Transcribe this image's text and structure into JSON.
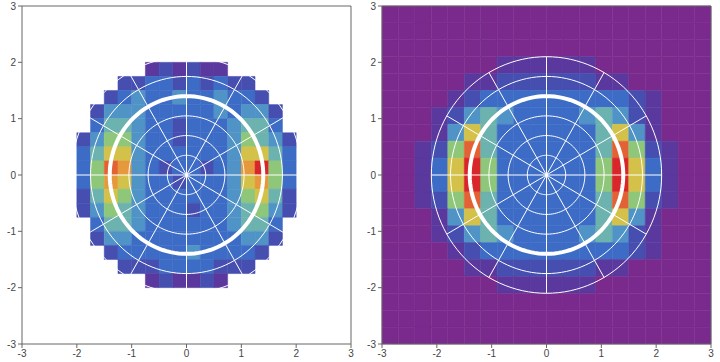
{
  "chart_data": [
    {
      "type": "heatmap",
      "xlim": [
        -3,
        3
      ],
      "ylim": [
        -3,
        3
      ],
      "xticks": [
        -3,
        -2,
        -1,
        0,
        1,
        2,
        3
      ],
      "yticks": [
        -3,
        -2,
        -1,
        0,
        1,
        2,
        3
      ],
      "zlim": [
        0,
        10
      ],
      "ring_radius": 1.4,
      "polar_grid": {
        "radii": [
          0.35,
          0.7,
          1.05,
          1.75,
          2.1
        ],
        "angles": [
          0,
          30,
          60,
          90,
          120,
          150,
          180,
          210,
          240,
          270,
          300,
          330
        ]
      },
      "x_edges": [
        -2,
        -1.75,
        -1.5,
        -1.25,
        -1,
        -0.75,
        -0.5,
        -0.25,
        0,
        0.25,
        0.5,
        0.75,
        1,
        1.25,
        1.5,
        1.75,
        2
      ],
      "y_edges": [
        2,
        1.75,
        1.5,
        1.25,
        1,
        0.75,
        0.5,
        0.25,
        0,
        -0.25,
        -0.5,
        -0.75,
        -1,
        -1.25,
        -1.5,
        -1.75,
        -2
      ],
      "cells": [
        [
          null,
          null,
          null,
          null,
          null,
          1,
          2,
          1,
          2,
          1,
          1,
          null,
          null,
          null,
          null,
          null
        ],
        [
          null,
          null,
          null,
          2,
          2,
          3,
          3,
          2,
          3,
          2,
          3,
          2,
          2,
          null,
          null,
          null
        ],
        [
          null,
          null,
          2,
          3,
          4,
          3,
          3,
          4,
          3,
          3,
          4,
          3,
          3,
          2,
          null,
          null
        ],
        [
          null,
          2,
          4,
          4,
          4,
          3,
          3,
          3,
          3,
          3,
          4,
          3,
          4,
          4,
          2,
          null
        ],
        [
          null,
          3,
          5,
          5,
          4,
          3,
          3,
          2,
          3,
          3,
          3,
          4,
          5,
          5,
          3,
          null
        ],
        [
          2,
          4,
          6,
          6,
          4,
          3,
          3,
          2,
          3,
          3,
          3,
          4,
          6,
          5,
          4,
          2
        ],
        [
          3,
          5,
          7,
          7,
          4,
          3,
          3,
          3,
          3,
          3,
          3,
          4,
          7,
          7,
          5,
          3
        ],
        [
          3,
          6,
          9,
          8,
          4,
          3,
          2,
          3,
          3,
          2,
          3,
          4,
          8,
          10,
          6,
          3
        ],
        [
          3,
          6,
          8,
          7,
          4,
          3,
          3,
          2,
          3,
          3,
          3,
          4,
          7,
          8,
          6,
          3
        ],
        [
          2,
          5,
          7,
          6,
          4,
          3,
          3,
          3,
          3,
          3,
          3,
          4,
          6,
          7,
          5,
          2
        ],
        [
          2,
          4,
          6,
          5,
          4,
          3,
          3,
          3,
          2,
          3,
          3,
          4,
          5,
          6,
          4,
          2
        ],
        [
          null,
          3,
          5,
          5,
          4,
          3,
          3,
          3,
          3,
          3,
          3,
          4,
          5,
          5,
          3,
          null
        ],
        [
          null,
          2,
          4,
          4,
          3,
          3,
          3,
          3,
          3,
          3,
          3,
          3,
          4,
          4,
          2,
          null
        ],
        [
          null,
          null,
          2,
          3,
          3,
          3,
          3,
          3,
          4,
          3,
          3,
          3,
          3,
          2,
          null,
          null
        ],
        [
          null,
          null,
          null,
          2,
          2,
          2,
          3,
          3,
          3,
          3,
          2,
          2,
          2,
          null,
          null,
          null
        ],
        [
          null,
          null,
          null,
          null,
          null,
          1,
          2,
          1,
          1,
          2,
          1,
          null,
          null,
          null,
          null,
          null
        ]
      ]
    },
    {
      "type": "heatmap",
      "xlim": [
        -3,
        3
      ],
      "ylim": [
        -3,
        3
      ],
      "xticks": [
        -3,
        -2,
        -1,
        0,
        1,
        2,
        3
      ],
      "yticks": [
        -3,
        -2,
        -1,
        0,
        1,
        2,
        3
      ],
      "zlim": [
        0,
        10
      ],
      "ring_radius": 1.4,
      "polar_grid": {
        "radii": [
          0.35,
          0.7,
          1.05,
          1.75,
          2.1
        ],
        "angles": [
          0,
          30,
          60,
          90,
          120,
          150,
          180,
          210,
          240,
          270,
          300,
          330
        ]
      },
      "x_edges": [
        -3,
        -2.7,
        -2.4,
        -2.1,
        -1.8,
        -1.5,
        -1.2,
        -0.9,
        -0.6,
        -0.3,
        0,
        0.3,
        0.6,
        0.9,
        1.2,
        1.5,
        1.8,
        2.1,
        2.4,
        2.7,
        3
      ],
      "y_edges": [
        3,
        2.7,
        2.4,
        2.1,
        1.8,
        1.5,
        1.2,
        0.9,
        0.6,
        0.3,
        0,
        -0.3,
        -0.6,
        -0.9,
        -1.2,
        -1.5,
        -1.8,
        -2.1,
        -2.4,
        -2.7,
        -3
      ],
      "cells": [
        [
          0,
          0,
          0,
          0,
          0,
          0,
          0,
          0,
          0,
          0,
          0,
          0,
          0,
          0,
          0,
          0,
          0,
          0,
          0,
          0
        ],
        [
          0,
          0,
          0,
          0,
          0,
          0,
          0,
          0,
          0,
          0,
          0,
          0,
          0,
          0,
          0,
          0,
          0,
          0,
          0,
          0
        ],
        [
          0,
          0,
          0,
          0,
          0,
          0,
          0,
          0,
          0,
          0,
          0,
          0,
          0,
          0,
          0,
          0,
          0,
          0,
          0,
          0
        ],
        [
          0,
          0,
          0,
          0,
          0,
          0,
          0,
          1,
          1,
          1,
          1,
          1,
          1,
          0,
          0,
          0,
          0,
          0,
          0,
          0
        ],
        [
          0,
          0,
          0,
          0,
          0,
          1,
          1,
          2,
          2,
          2,
          2,
          2,
          2,
          1,
          1,
          0,
          0,
          0,
          0,
          0
        ],
        [
          0,
          0,
          0,
          0,
          1,
          2,
          3,
          3,
          3,
          3,
          3,
          3,
          3,
          3,
          3,
          2,
          1,
          0,
          0,
          0
        ],
        [
          0,
          0,
          0,
          1,
          2,
          4,
          5,
          4,
          3,
          3,
          3,
          3,
          4,
          5,
          4,
          2,
          1,
          0,
          0,
          0
        ],
        [
          0,
          0,
          0,
          1,
          4,
          7,
          5,
          3,
          3,
          3,
          3,
          3,
          3,
          5,
          7,
          4,
          1,
          0,
          0,
          0
        ],
        [
          0,
          0,
          1,
          2,
          6,
          9,
          5,
          3,
          3,
          3,
          3,
          3,
          3,
          5,
          9,
          6,
          2,
          1,
          0,
          0
        ],
        [
          0,
          0,
          1,
          3,
          7,
          10,
          6,
          3,
          3,
          3,
          3,
          3,
          3,
          6,
          10,
          7,
          3,
          1,
          0,
          0
        ],
        [
          0,
          0,
          1,
          3,
          7,
          10,
          6,
          3,
          3,
          3,
          3,
          3,
          3,
          6,
          10,
          7,
          3,
          1,
          0,
          0
        ],
        [
          0,
          0,
          1,
          2,
          6,
          9,
          5,
          3,
          3,
          3,
          3,
          3,
          3,
          5,
          9,
          6,
          2,
          1,
          0,
          0
        ],
        [
          0,
          0,
          0,
          1,
          4,
          7,
          5,
          3,
          3,
          3,
          3,
          3,
          3,
          5,
          7,
          4,
          1,
          0,
          0,
          0
        ],
        [
          0,
          0,
          0,
          1,
          2,
          4,
          5,
          4,
          3,
          3,
          3,
          3,
          4,
          5,
          4,
          2,
          1,
          0,
          0,
          0
        ],
        [
          0,
          0,
          0,
          0,
          1,
          2,
          3,
          3,
          3,
          3,
          3,
          3,
          3,
          3,
          3,
          2,
          1,
          0,
          0,
          0
        ],
        [
          0,
          0,
          0,
          0,
          0,
          1,
          1,
          2,
          2,
          2,
          2,
          2,
          2,
          1,
          1,
          0,
          0,
          0,
          0,
          0
        ],
        [
          0,
          0,
          0,
          0,
          0,
          0,
          0,
          1,
          1,
          1,
          1,
          1,
          1,
          0,
          0,
          0,
          0,
          0,
          0,
          0
        ],
        [
          0,
          0,
          0,
          0,
          0,
          0,
          0,
          0,
          0,
          0,
          0,
          0,
          0,
          0,
          0,
          0,
          0,
          0,
          0,
          0
        ],
        [
          0,
          0,
          0,
          0,
          0,
          0,
          0,
          0,
          0,
          0,
          0,
          0,
          0,
          0,
          0,
          0,
          0,
          0,
          0,
          0
        ],
        [
          0,
          0,
          0,
          0,
          0,
          0,
          0,
          0,
          0,
          0,
          0,
          0,
          0,
          0,
          0,
          0,
          0,
          0,
          0,
          0
        ]
      ]
    }
  ]
}
